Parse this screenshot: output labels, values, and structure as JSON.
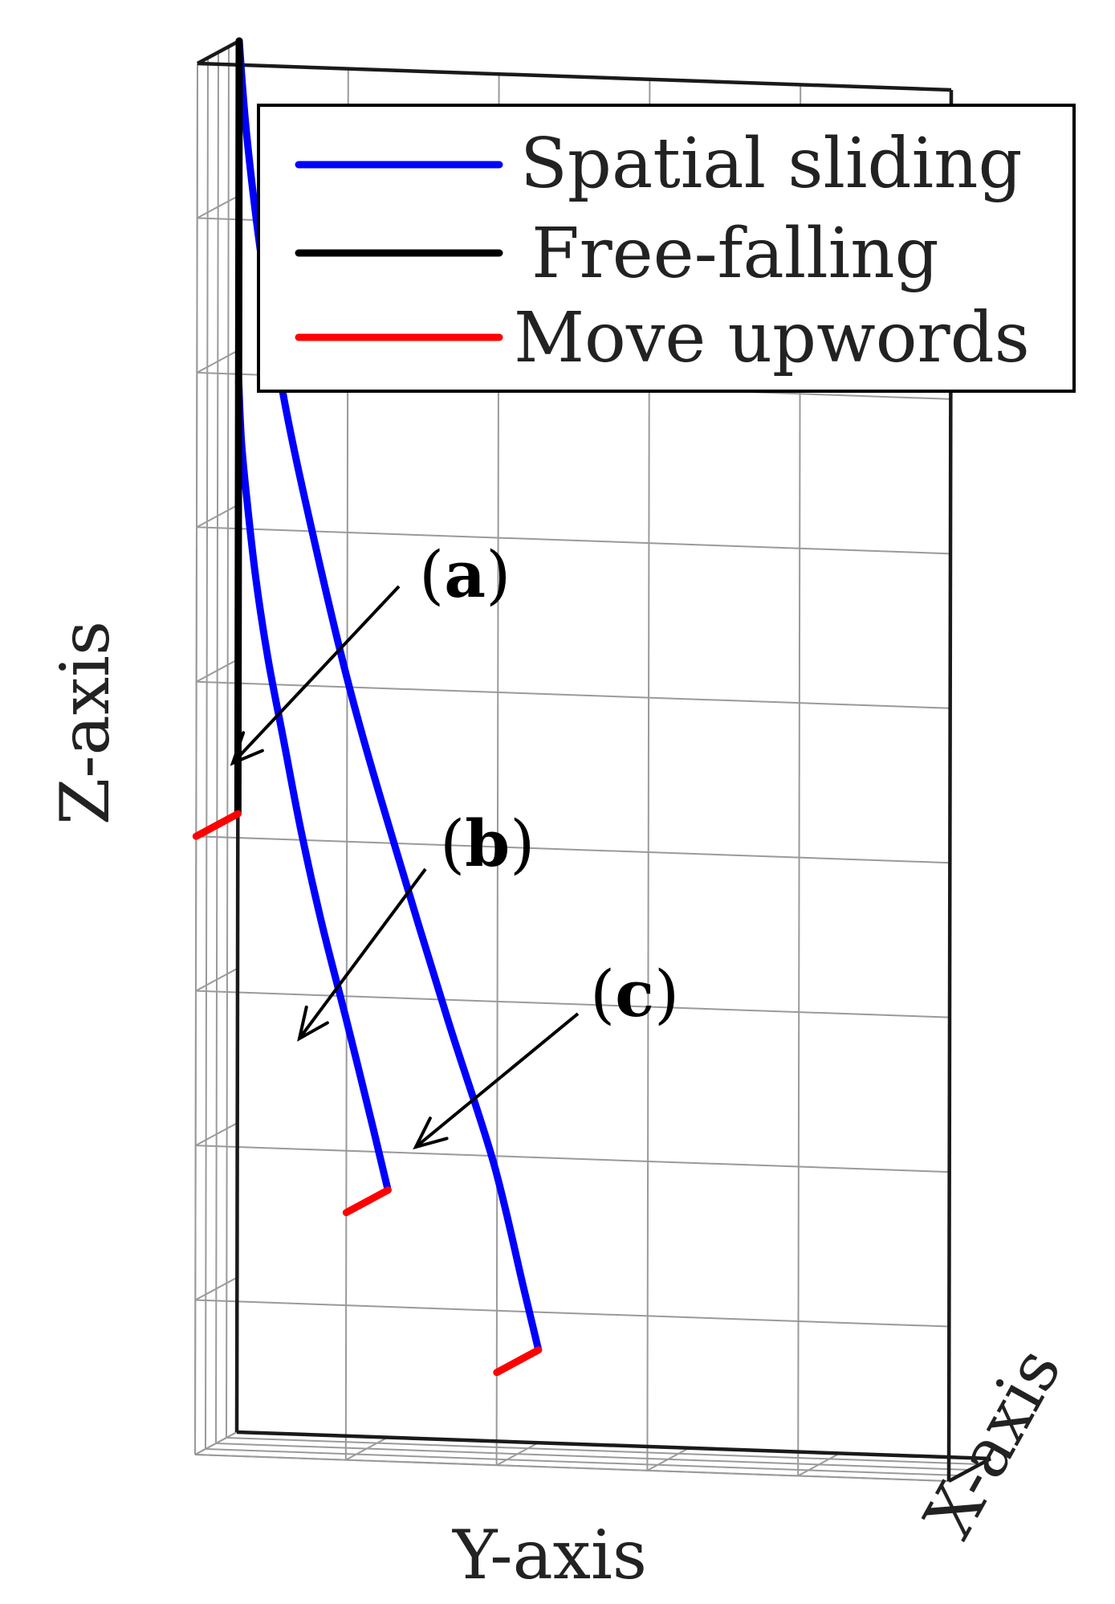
{
  "chart_data": {
    "type": "line",
    "projection": "3d",
    "grid": true,
    "box": true,
    "legend_position": "top-right",
    "colors": {
      "spatial_sliding": "#0000ff",
      "free_falling": "#000000",
      "move_upwords": "#ff0000",
      "grid": "#9a9a9a",
      "box": "#1a1a1a",
      "text": "#222222"
    },
    "axis_labels": {
      "x": "X-axis",
      "y": "Y-axis",
      "z": "Z-axis"
    },
    "legend": [
      {
        "label": "Spatial sliding",
        "color": "#0000ff"
      },
      {
        "label": "Free-falling",
        "color": "#000000"
      },
      {
        "label": "Move upwords",
        "color": "#ff0000"
      }
    ],
    "annotations": [
      {
        "label_open": "(",
        "label_bold": "a",
        "label_close": ")"
      },
      {
        "label_open": "(",
        "label_bold": "b",
        "label_close": ")"
      },
      {
        "label_open": "(",
        "label_bold": "c",
        "label_close": ")"
      }
    ],
    "ranges": {
      "x": [
        0,
        1
      ],
      "y": [
        0,
        5
      ],
      "z": [
        0,
        9
      ]
    },
    "series": [
      {
        "name": "Spatial sliding",
        "x": 0,
        "y": [
          0,
          0.02,
          0.06,
          0.12,
          0.2,
          0.3,
          0.42,
          0.56,
          0.72,
          0.9,
          1.0
        ],
        "z": [
          6.8,
          6.4,
          6.0,
          5.5,
          5.0,
          4.5,
          3.9,
          3.3,
          2.7,
          2.0,
          1.6
        ]
      },
      {
        "name": "Spatial sliding",
        "x": 0,
        "y": [
          0,
          0.05,
          0.15,
          0.3,
          0.5,
          0.75,
          1.05,
          1.4,
          1.7,
          1.9,
          2.0
        ],
        "z": [
          9.0,
          8.4,
          7.6,
          6.7,
          5.8,
          4.8,
          3.8,
          2.7,
          1.8,
          1.0,
          0.6
        ]
      },
      {
        "name": "Free-falling",
        "x": 0,
        "y": [
          0,
          0
        ],
        "z": [
          9.0,
          4.0
        ]
      },
      {
        "name": "Move upwords",
        "x": [
          0,
          1
        ],
        "y": [
          0,
          0
        ],
        "z": [
          4.0,
          4.0
        ]
      },
      {
        "name": "Move upwords",
        "x": [
          0,
          1
        ],
        "y": [
          1.0,
          1.0
        ],
        "z": [
          1.6,
          1.6
        ]
      },
      {
        "name": "Move upwords",
        "x": [
          0,
          1
        ],
        "y": [
          2.0,
          2.0
        ],
        "z": [
          0.6,
          0.6
        ]
      }
    ]
  }
}
